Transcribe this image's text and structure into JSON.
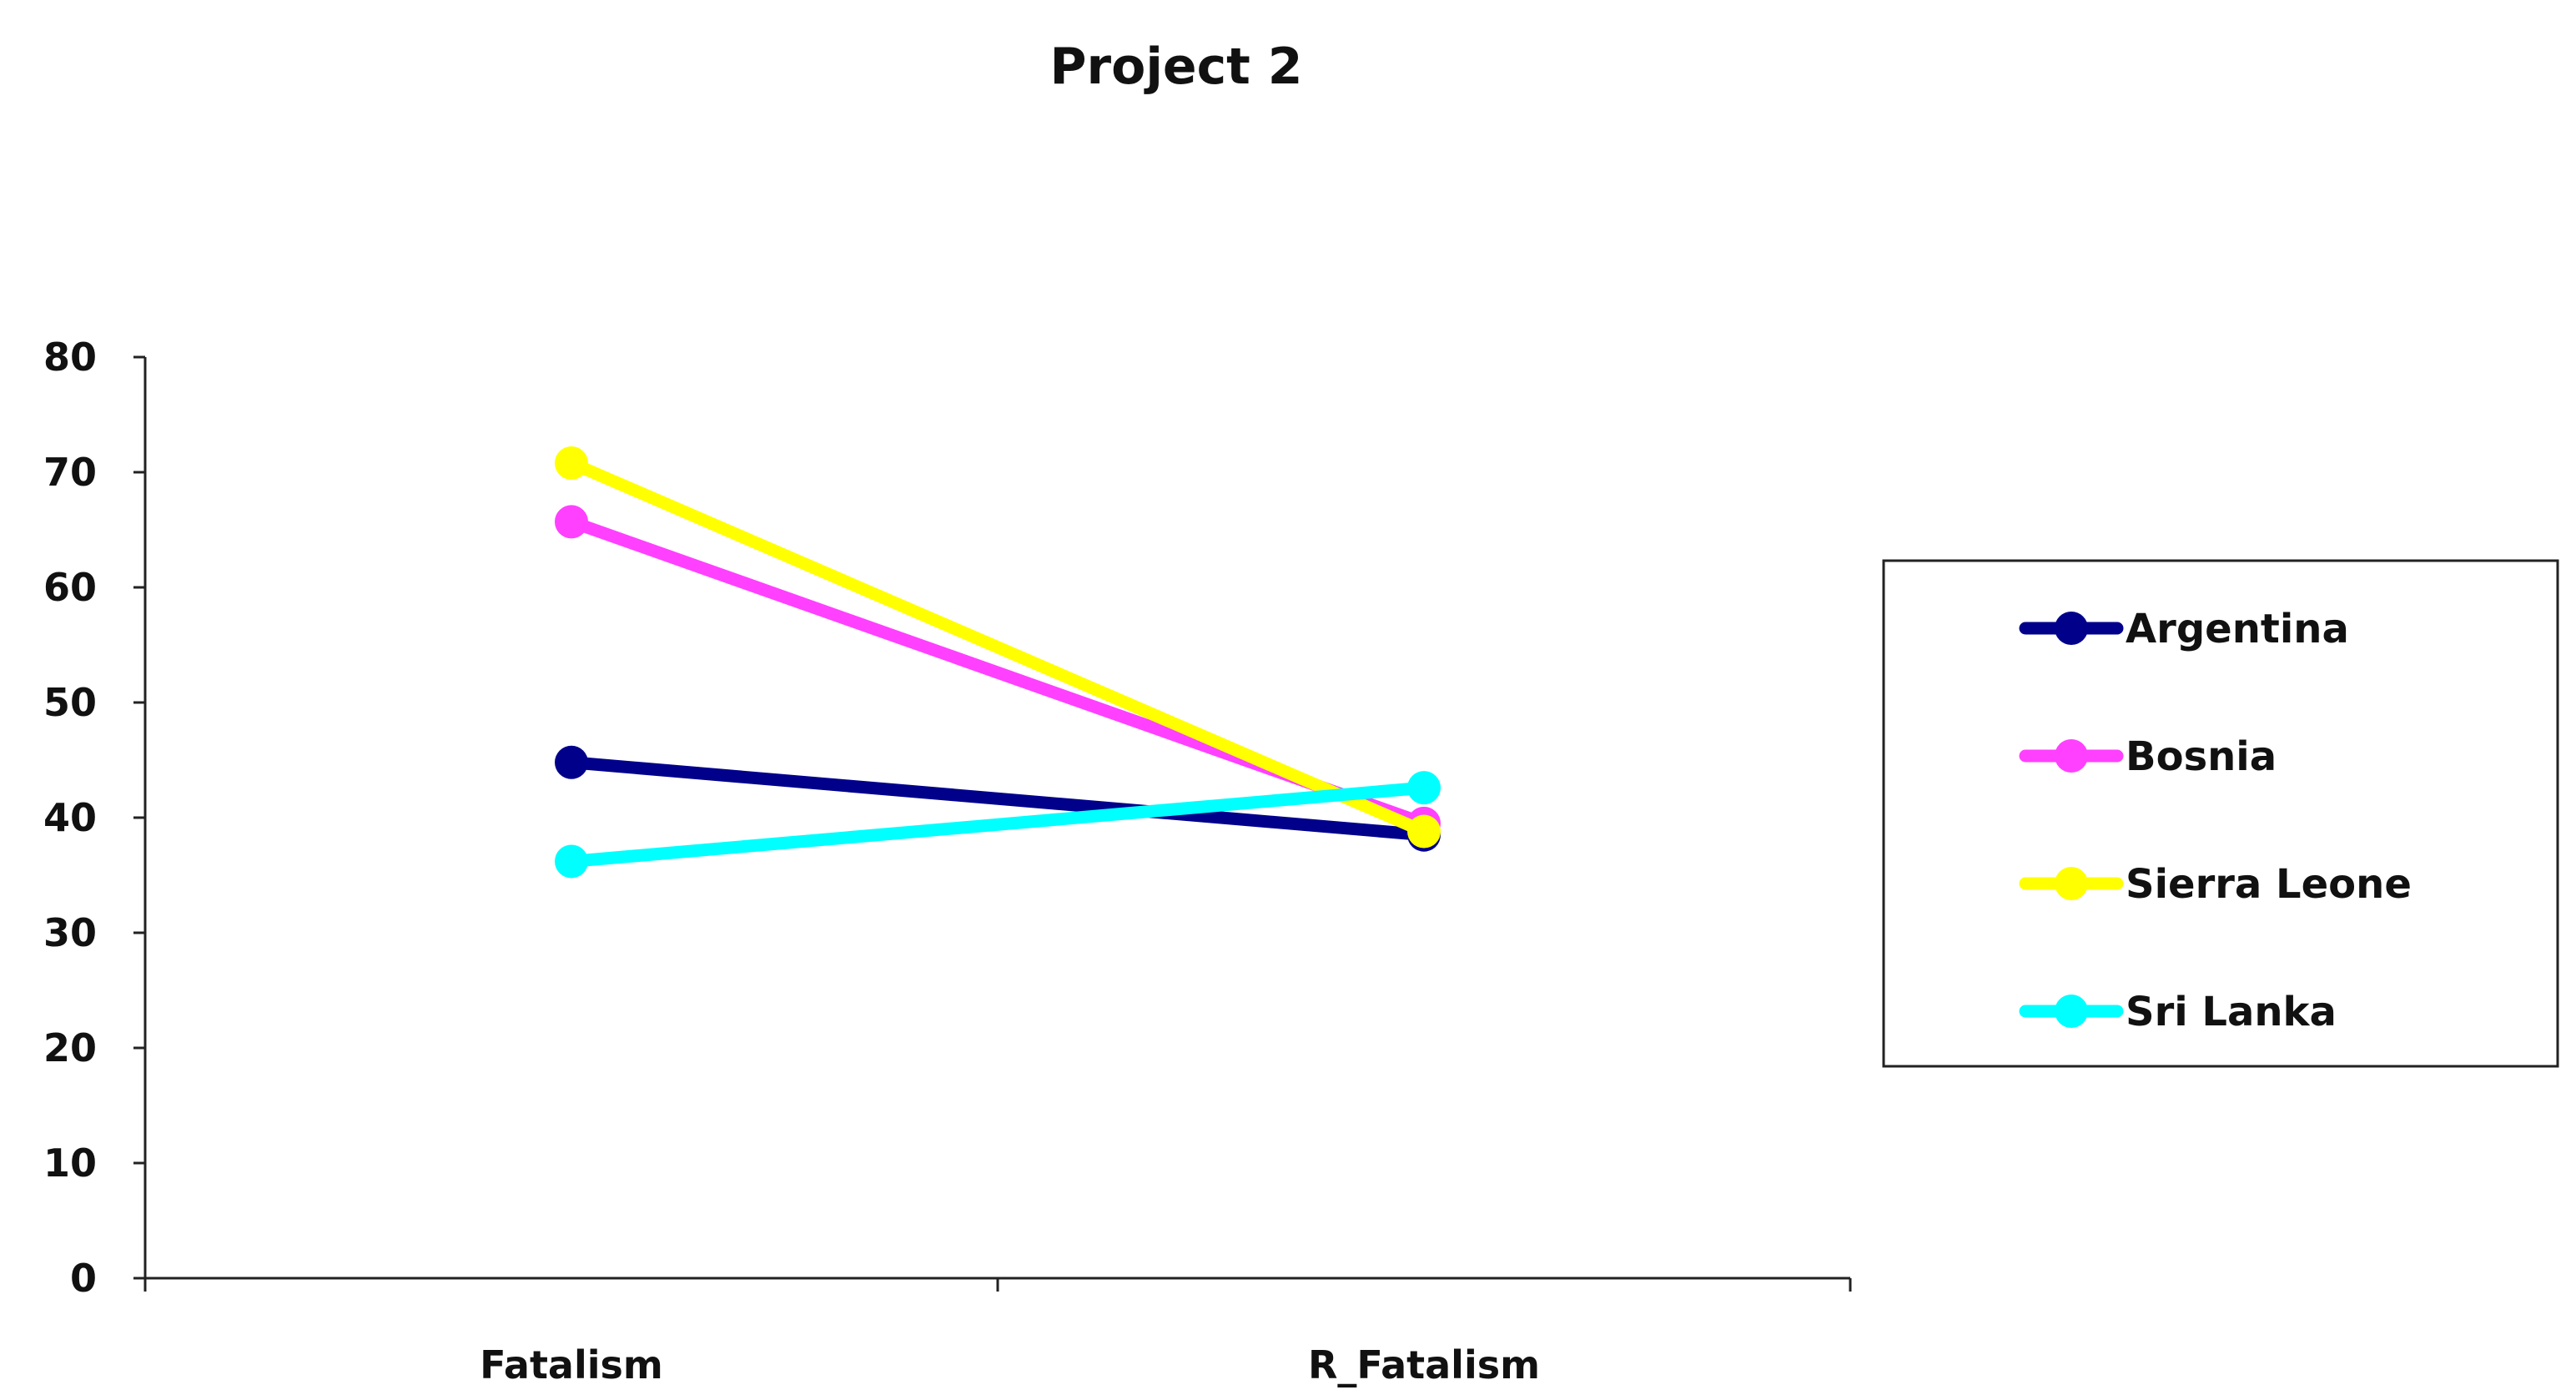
{
  "chart_data": {
    "type": "line",
    "title": "Project 2",
    "xlabel": "",
    "ylabel": "",
    "categories": [
      "Fatalism",
      "R_Fatalism"
    ],
    "ylim": [
      0,
      80
    ],
    "yticks": [
      0,
      10,
      20,
      30,
      40,
      50,
      60,
      70,
      80
    ],
    "grid": false,
    "legend": "right",
    "series": [
      {
        "name": "Argentina",
        "values": [
          44.8,
          38.5
        ],
        "color": "#00008b"
      },
      {
        "name": "Bosnia",
        "values": [
          65.7,
          39.5
        ],
        "color": "#ff40ff"
      },
      {
        "name": "Sierra Leone",
        "values": [
          70.8,
          38.8
        ],
        "color": "#ffff00"
      },
      {
        "name": "Sri Lanka",
        "values": [
          36.2,
          42.6
        ],
        "color": "#00ffff"
      }
    ]
  }
}
